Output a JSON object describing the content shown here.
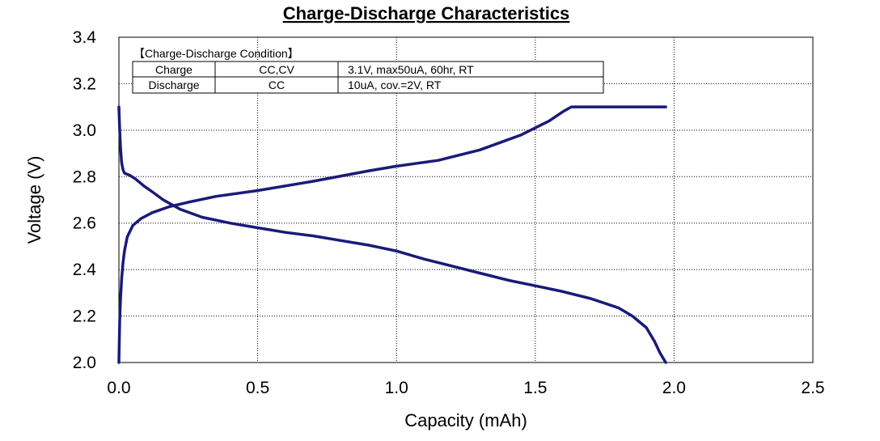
{
  "chart_data": {
    "type": "line",
    "title": "Charge-Discharge Characteristics",
    "xlabel": "Capacity (mAh)",
    "ylabel": "Voltage (V)",
    "xlim": [
      0.0,
      2.5
    ],
    "ylim": [
      2.0,
      3.4
    ],
    "x_ticks": [
      "0.0",
      "0.5",
      "1.0",
      "1.5",
      "2.0",
      "2.5"
    ],
    "y_ticks": [
      "2.0",
      "2.2",
      "2.4",
      "2.6",
      "2.8",
      "3.0",
      "3.2",
      "3.4"
    ],
    "grid": true,
    "line_color": "#1a1a7a",
    "series": [
      {
        "x": [
          0.0,
          0.003,
          0.006,
          0.01,
          0.015,
          0.02,
          0.03,
          0.05,
          0.08,
          0.12,
          0.18,
          0.25,
          0.35,
          0.5,
          0.7,
          0.9,
          1.0,
          1.15,
          1.3,
          1.45,
          1.55,
          1.6,
          1.63,
          1.65,
          1.7,
          1.8,
          1.97
        ],
        "y": [
          2.0,
          2.18,
          2.28,
          2.36,
          2.43,
          2.48,
          2.54,
          2.59,
          2.62,
          2.645,
          2.67,
          2.69,
          2.715,
          2.74,
          2.78,
          2.825,
          2.845,
          2.87,
          2.915,
          2.98,
          3.04,
          3.08,
          3.1,
          3.1,
          3.1,
          3.1,
          3.1
        ]
      },
      {
        "x": [
          0.0,
          0.003,
          0.006,
          0.01,
          0.015,
          0.02,
          0.04,
          0.06,
          0.09,
          0.12,
          0.16,
          0.22,
          0.3,
          0.4,
          0.5,
          0.6,
          0.7,
          0.8,
          0.9,
          1.0,
          1.1,
          1.2,
          1.3,
          1.4,
          1.5,
          1.6,
          1.7,
          1.8,
          1.85,
          1.9,
          1.93,
          1.95,
          1.97
        ],
        "y": [
          3.1,
          3.0,
          2.92,
          2.86,
          2.83,
          2.815,
          2.805,
          2.79,
          2.76,
          2.735,
          2.7,
          2.66,
          2.625,
          2.6,
          2.58,
          2.56,
          2.545,
          2.525,
          2.505,
          2.48,
          2.445,
          2.415,
          2.385,
          2.355,
          2.33,
          2.305,
          2.275,
          2.235,
          2.2,
          2.15,
          2.09,
          2.04,
          2.0
        ]
      }
    ],
    "condition_box": {
      "title": "【Charge-Discharge Condition】",
      "rows": [
        [
          "Charge",
          "CC,CV",
          "3.1V,  max50uA,  60hr,   RT"
        ],
        [
          "Discharge",
          "CC",
          "10uA,  cov.=2V,   RT"
        ]
      ]
    }
  }
}
